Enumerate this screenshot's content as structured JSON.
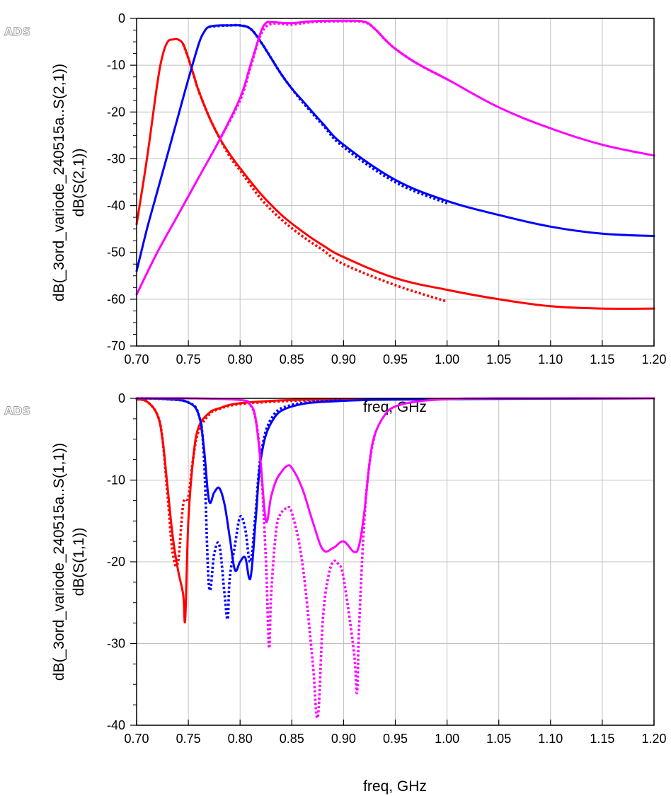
{
  "chart_data": [
    {
      "type": "line",
      "logo": "ADS",
      "ylabel_line1": "dB(_3ord_variode_240515a..S(2,1))",
      "ylabel_line2": "dB(S(2,1))",
      "xlabel": "freq, GHz",
      "xlim": [
        0.7,
        1.2
      ],
      "ylim": [
        -70,
        0
      ],
      "x_ticks": [
        "0.70",
        "0.75",
        "0.80",
        "0.85",
        "0.90",
        "0.95",
        "1.00",
        "1.05",
        "1.10",
        "1.15",
        "1.20"
      ],
      "y_ticks": [
        "0",
        "-10",
        "-20",
        "-30",
        "-40",
        "-50",
        "-60",
        "-70"
      ],
      "grid": true,
      "series": [
        {
          "name": "red-solid",
          "color": "#ff0000",
          "style": "solid",
          "x": [
            0.7,
            0.71,
            0.72,
            0.725,
            0.73,
            0.735,
            0.74,
            0.745,
            0.75,
            0.755,
            0.76,
            0.77,
            0.78,
            0.79,
            0.8,
            0.82,
            0.84,
            0.86,
            0.88,
            0.9,
            0.95,
            1.0,
            1.05,
            1.1,
            1.15,
            1.2
          ],
          "y": [
            -44,
            -30,
            -14,
            -8,
            -5,
            -4.5,
            -4.5,
            -5.5,
            -8.5,
            -12,
            -15.5,
            -21,
            -25.5,
            -29,
            -32,
            -37.5,
            -42,
            -45.5,
            -48.5,
            -51,
            -55.5,
            -58,
            -60,
            -61.5,
            -62,
            -62
          ]
        },
        {
          "name": "red-dotted",
          "color": "#ff0000",
          "style": "dotted",
          "x": [
            0.745,
            0.75,
            0.755,
            0.76,
            0.77,
            0.78,
            0.79,
            0.8,
            0.82,
            0.84,
            0.86,
            0.88,
            0.9,
            0.95,
            1.0
          ],
          "y": [
            -5.5,
            -8.5,
            -12,
            -15.5,
            -21,
            -25.5,
            -29.5,
            -32.5,
            -38.5,
            -43,
            -46.5,
            -49.5,
            -52.5,
            -57,
            -60.5
          ]
        },
        {
          "name": "blue-solid",
          "color": "#0000ff",
          "style": "solid",
          "x": [
            0.7,
            0.71,
            0.72,
            0.73,
            0.74,
            0.75,
            0.76,
            0.765,
            0.77,
            0.78,
            0.79,
            0.8,
            0.81,
            0.82,
            0.83,
            0.84,
            0.85,
            0.86,
            0.88,
            0.9,
            0.95,
            1.0,
            1.05,
            1.1,
            1.15,
            1.2
          ],
          "y": [
            -54,
            -45,
            -37,
            -29,
            -21,
            -13,
            -5.5,
            -3,
            -1.8,
            -1.5,
            -1.5,
            -1.5,
            -2.2,
            -5,
            -8.5,
            -12,
            -15,
            -17.5,
            -22.5,
            -27,
            -34.5,
            -39,
            -42,
            -44.5,
            -46,
            -46.5
          ]
        },
        {
          "name": "blue-dotted",
          "color": "#0000ff",
          "style": "dotted",
          "x": [
            0.77,
            0.78,
            0.79,
            0.8,
            0.81,
            0.82,
            0.83,
            0.84,
            0.85,
            0.86,
            0.88,
            0.9,
            0.95,
            1.0
          ],
          "y": [
            -1.8,
            -1.6,
            -1.5,
            -1.5,
            -2.2,
            -5,
            -8.5,
            -12,
            -15,
            -17.8,
            -22.8,
            -27.5,
            -35,
            -39.5
          ]
        },
        {
          "name": "magenta-solid",
          "color": "#ff00ff",
          "style": "solid",
          "x": [
            0.7,
            0.72,
            0.74,
            0.76,
            0.78,
            0.8,
            0.81,
            0.82,
            0.825,
            0.83,
            0.85,
            0.87,
            0.9,
            0.92,
            0.93,
            0.94,
            0.95,
            0.97,
            1.0,
            1.05,
            1.1,
            1.15,
            1.2
          ],
          "y": [
            -59,
            -50,
            -42,
            -34,
            -26,
            -17,
            -10,
            -3,
            -1,
            -0.8,
            -1,
            -0.6,
            -0.5,
            -0.7,
            -2.2,
            -4.5,
            -6.5,
            -9.5,
            -13,
            -19,
            -23.5,
            -27,
            -29.3
          ]
        },
        {
          "name": "magenta-dotted",
          "color": "#ff00ff",
          "style": "dotted",
          "x": [
            0.78,
            0.8,
            0.81,
            0.82,
            0.83,
            0.85,
            0.87,
            0.9,
            0.92,
            0.93,
            0.94,
            0.95,
            0.97,
            1.0
          ],
          "y": [
            -26,
            -17.5,
            -10.5,
            -3.5,
            -1.2,
            -1.3,
            -0.8,
            -0.6,
            -0.8,
            -2.2,
            -4.5,
            -6.5,
            -9.5,
            -13
          ]
        }
      ]
    },
    {
      "type": "line",
      "logo": "ADS",
      "ylabel_line1": "dB(_3ord_variode_240515a..S(1,1))",
      "ylabel_line2": "dB(S(1,1))",
      "xlabel": "freq, GHz",
      "xlim": [
        0.7,
        1.2
      ],
      "ylim": [
        -40,
        0
      ],
      "x_ticks": [
        "0.70",
        "0.75",
        "0.80",
        "0.85",
        "0.90",
        "0.95",
        "1.00",
        "1.05",
        "1.10",
        "1.15",
        "1.20"
      ],
      "y_ticks": [
        "0",
        "-10",
        "-20",
        "-30",
        "-40"
      ],
      "grid": true,
      "series": [
        {
          "name": "red-solid",
          "color": "#ff0000",
          "style": "solid",
          "x": [
            0.7,
            0.71,
            0.72,
            0.725,
            0.73,
            0.735,
            0.74,
            0.745,
            0.747,
            0.75,
            0.755,
            0.76,
            0.77,
            0.78,
            0.8,
            0.85,
            0.9,
            1.0,
            1.2
          ],
          "y": [
            -0.1,
            -0.4,
            -2,
            -5,
            -11,
            -17,
            -21,
            -24,
            -27,
            -15,
            -7,
            -3.5,
            -1.8,
            -1.2,
            -0.6,
            -0.2,
            -0.1,
            -0.05,
            0
          ]
        },
        {
          "name": "red-dotted",
          "color": "#ff0000",
          "style": "dotted",
          "x": [
            0.7,
            0.71,
            0.72,
            0.725,
            0.73,
            0.735,
            0.74,
            0.745,
            0.75,
            0.755,
            0.76,
            0.77,
            0.78,
            0.8,
            0.85,
            0.9
          ],
          "y": [
            -0.1,
            -0.4,
            -2,
            -5,
            -12,
            -19,
            -20,
            -13,
            -12,
            -7,
            -4,
            -2,
            -1.3,
            -0.7,
            -0.3,
            -0.15
          ]
        },
        {
          "name": "blue-solid",
          "color": "#0000ff",
          "style": "solid",
          "x": [
            0.7,
            0.73,
            0.75,
            0.76,
            0.765,
            0.77,
            0.775,
            0.78,
            0.785,
            0.79,
            0.795,
            0.8,
            0.805,
            0.81,
            0.815,
            0.82,
            0.83,
            0.85,
            0.9,
            1.0,
            1.2
          ],
          "y": [
            0,
            -0.1,
            -0.5,
            -2,
            -6,
            -12.5,
            -11.5,
            -11,
            -13,
            -17,
            -21,
            -20,
            -19.5,
            -22,
            -15,
            -7.5,
            -3,
            -1,
            -0.3,
            -0.1,
            0
          ]
        },
        {
          "name": "blue-dotted",
          "color": "#0000ff",
          "style": "dotted",
          "x": [
            0.7,
            0.73,
            0.75,
            0.76,
            0.765,
            0.77,
            0.775,
            0.78,
            0.785,
            0.788,
            0.79,
            0.795,
            0.8,
            0.805,
            0.81,
            0.815,
            0.82,
            0.83,
            0.85,
            0.9
          ],
          "y": [
            0,
            -0.1,
            -0.5,
            -2,
            -7,
            -23,
            -19,
            -18,
            -24,
            -27,
            -22,
            -18,
            -14.5,
            -16,
            -20,
            -14,
            -7,
            -2.5,
            -0.8,
            -0.2
          ]
        },
        {
          "name": "magenta-solid",
          "color": "#ff00ff",
          "style": "solid",
          "x": [
            0.7,
            0.75,
            0.8,
            0.81,
            0.815,
            0.82,
            0.825,
            0.83,
            0.835,
            0.84,
            0.845,
            0.85,
            0.86,
            0.87,
            0.88,
            0.89,
            0.9,
            0.91,
            0.915,
            0.92,
            0.925,
            0.93,
            0.94,
            0.95,
            0.97,
            1.0,
            1.05,
            1.2
          ],
          "y": [
            0,
            0,
            -0.2,
            -0.8,
            -2.5,
            -8,
            -15,
            -12,
            -10,
            -9,
            -8.3,
            -8.5,
            -11,
            -15,
            -18.5,
            -18.3,
            -17.5,
            -18.8,
            -18,
            -14,
            -8,
            -4.5,
            -2,
            -1,
            -0.4,
            -0.1,
            0,
            0
          ]
        },
        {
          "name": "magenta-dotted",
          "color": "#ff00ff",
          "style": "dotted",
          "x": [
            0.81,
            0.815,
            0.82,
            0.825,
            0.828,
            0.83,
            0.835,
            0.84,
            0.845,
            0.85,
            0.86,
            0.87,
            0.875,
            0.88,
            0.885,
            0.89,
            0.895,
            0.9,
            0.91,
            0.913,
            0.915,
            0.92,
            0.925,
            0.93
          ],
          "y": [
            -0.8,
            -2.5,
            -8,
            -20,
            -30.5,
            -24,
            -16,
            -14,
            -13.5,
            -14,
            -20,
            -32,
            -39,
            -27,
            -22,
            -20,
            -20.3,
            -22,
            -31,
            -36,
            -28,
            -15,
            -8,
            -4.5
          ]
        }
      ]
    }
  ]
}
